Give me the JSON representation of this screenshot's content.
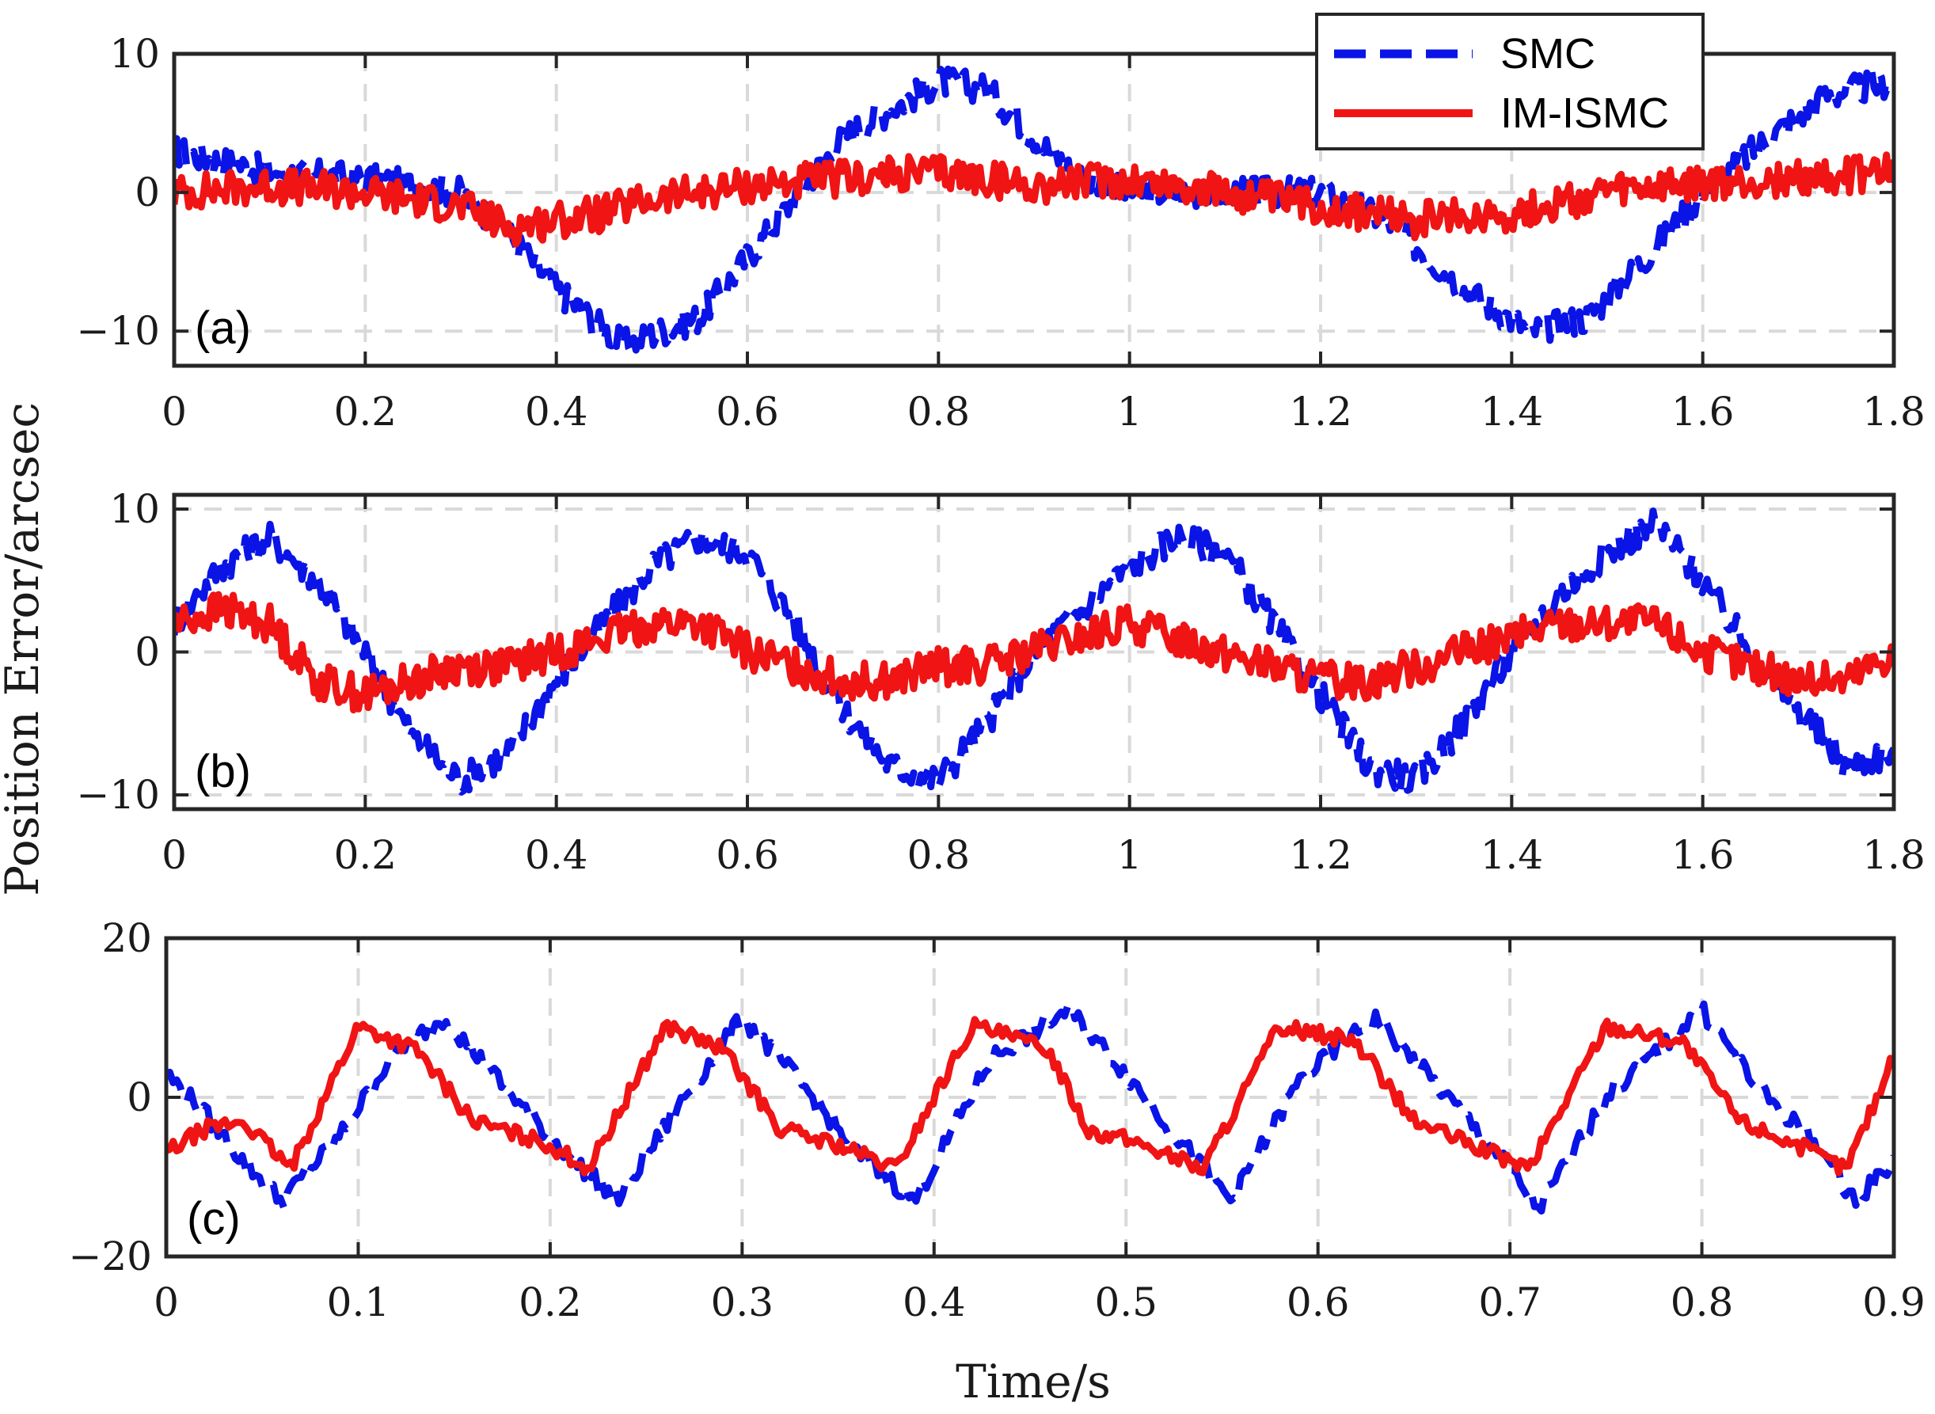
{
  "colors": {
    "smc": "#0a14e6",
    "im_ismc": "#f01414",
    "grid": "#d9d9d9",
    "axis": "#262626"
  },
  "chart_data": {
    "type": "line",
    "ylabel": "Position Error/arcsec",
    "xlabel": "Time/s",
    "legend": {
      "position": "top-right",
      "entries": [
        "SMC",
        "IM-ISMC"
      ]
    },
    "grid": true,
    "panels": [
      {
        "label": "(a)",
        "xlim": [
          0,
          1.8
        ],
        "ylim": [
          -12.5,
          10
        ],
        "xticks": [
          0,
          0.2,
          0.4,
          0.6,
          0.8,
          1,
          1.2,
          1.4,
          1.6,
          1.8
        ],
        "xtick_labels": [
          "0",
          "0.2",
          "0.4",
          "0.6",
          "0.8",
          "1",
          "1.2",
          "1.4",
          "1.6",
          "1.8"
        ],
        "yticks": [
          -10,
          0,
          10
        ],
        "ytick_labels": [
          "−10",
          "0",
          "10"
        ],
        "series": [
          {
            "name": "SMC",
            "style": "dashed",
            "x": [
              0,
              0.1,
              0.2,
              0.3,
              0.35,
              0.4,
              0.47,
              0.55,
              0.62,
              0.7,
              0.8,
              0.85,
              0.9,
              0.95,
              1.0,
              1.1,
              1.2,
              1.27,
              1.35,
              1.42,
              1.48,
              1.55,
              1.6,
              1.67,
              1.73,
              1.8
            ],
            "y": [
              3,
              1.5,
              1,
              0,
              -3,
              -7,
              -11,
              -9,
              -3,
              4,
              8,
              7.5,
              4,
              1,
              0,
              0,
              0,
              -2,
              -7,
              -10,
              -9,
              -4,
              0,
              4,
              7,
              8
            ]
          },
          {
            "name": "IM-ISMC",
            "style": "solid",
            "x": [
              0,
              0.1,
              0.2,
              0.3,
              0.35,
              0.4,
              0.45,
              0.5,
              0.6,
              0.7,
              0.8,
              0.9,
              1.0,
              1.1,
              1.2,
              1.3,
              1.4,
              1.5,
              1.6,
              1.7,
              1.8
            ],
            "y": [
              0,
              0.5,
              0,
              -1,
              -2.5,
              -2,
              -1.5,
              -0.5,
              0.5,
              1,
              1.5,
              0.5,
              1,
              0,
              -1,
              -2,
              -1.5,
              0,
              0.5,
              1,
              1.5
            ]
          }
        ]
      },
      {
        "label": "(b)",
        "xlim": [
          0,
          1.8
        ],
        "ylim": [
          -11,
          11
        ],
        "xticks": [
          0,
          0.2,
          0.4,
          0.6,
          0.8,
          1,
          1.2,
          1.4,
          1.6,
          1.8
        ],
        "xtick_labels": [
          "0",
          "0.2",
          "0.4",
          "0.6",
          "0.8",
          "1",
          "1.2",
          "1.4",
          "1.6",
          "1.8"
        ],
        "yticks": [
          -10,
          0,
          10
        ],
        "ytick_labels": [
          "−10",
          "0",
          "10"
        ],
        "series": [
          {
            "name": "SMC",
            "style": "dashed",
            "x": [
              0,
              0.05,
              0.1,
              0.15,
              0.2,
              0.25,
              0.3,
              0.35,
              0.4,
              0.45,
              0.5,
              0.55,
              0.6,
              0.65,
              0.7,
              0.75,
              0.8,
              0.85,
              0.9,
              0.95,
              1.0,
              1.05,
              1.1,
              1.15,
              1.2,
              1.25,
              1.3,
              1.35,
              1.4,
              1.45,
              1.5,
              1.55,
              1.6,
              1.65,
              1.7,
              1.75,
              1.8
            ],
            "y": [
              2,
              6,
              8,
              5,
              0,
              -6,
              -9,
              -7,
              -2,
              2,
              6,
              8,
              7,
              2,
              -4,
              -8,
              -9,
              -5,
              0,
              3,
              6,
              8,
              7,
              2,
              -3,
              -8,
              -9,
              -5,
              0,
              4,
              7,
              9,
              5,
              0,
              -4,
              -8,
              -7
            ]
          },
          {
            "name": "IM-ISMC",
            "style": "solid",
            "x": [
              0,
              0.05,
              0.1,
              0.15,
              0.2,
              0.25,
              0.3,
              0.35,
              0.4,
              0.45,
              0.5,
              0.55,
              0.6,
              0.65,
              0.7,
              0.75,
              0.8,
              0.85,
              0.9,
              0.95,
              1.0,
              1.05,
              1.1,
              1.15,
              1.2,
              1.25,
              1.3,
              1.35,
              1.4,
              1.45,
              1.5,
              1.55,
              1.6,
              1.65,
              1.7,
              1.75,
              1.8
            ],
            "y": [
              2,
              3,
              2,
              -2,
              -3,
              -2,
              -1,
              -1,
              0,
              1,
              2,
              2,
              0,
              -1,
              -2,
              -2,
              -1,
              -1,
              0,
              1,
              2,
              1,
              0,
              -1,
              -2,
              -2,
              -1,
              0,
              1,
              2,
              2,
              2,
              0,
              -1,
              -2,
              -2,
              0
            ]
          }
        ]
      },
      {
        "label": "(c)",
        "xlim": [
          0,
          0.9
        ],
        "ylim": [
          -20,
          20
        ],
        "xticks": [
          0,
          0.1,
          0.2,
          0.3,
          0.4,
          0.5,
          0.6,
          0.7,
          0.8,
          0.9
        ],
        "xtick_labels": [
          "0",
          "0.1",
          "0.2",
          "0.3",
          "0.4",
          "0.5",
          "0.6",
          "0.7",
          "0.8",
          "0.9"
        ],
        "yticks": [
          -20,
          0,
          20
        ],
        "ytick_labels": [
          "−20",
          "0",
          "20"
        ],
        "series": [
          {
            "name": "SMC",
            "style": "dashed",
            "x": [
              0,
              0.02,
              0.04,
              0.06,
              0.09,
              0.12,
              0.145,
              0.17,
              0.2,
              0.235,
              0.27,
              0.3,
              0.33,
              0.36,
              0.39,
              0.43,
              0.47,
              0.5,
              0.53,
              0.555,
              0.59,
              0.63,
              0.66,
              0.69,
              0.715,
              0.75,
              0.8,
              0.83,
              0.86,
              0.88,
              0.9
            ],
            "y": [
              3,
              -2,
              -8,
              -13,
              -5,
              6,
              10,
              3,
              -5,
              -13,
              0,
              10,
              2,
              -7,
              -13,
              5,
              11,
              3,
              -6,
              -13,
              2,
              10,
              2,
              -6,
              -14,
              0,
              11,
              1,
              -6,
              -13,
              -8
            ]
          },
          {
            "name": "IM-ISMC",
            "style": "solid",
            "x": [
              0,
              0.02,
              0.04,
              0.065,
              0.1,
              0.13,
              0.16,
              0.2,
              0.22,
              0.26,
              0.29,
              0.32,
              0.35,
              0.38,
              0.42,
              0.46,
              0.48,
              0.51,
              0.54,
              0.58,
              0.62,
              0.65,
              0.68,
              0.71,
              0.75,
              0.79,
              0.82,
              0.85,
              0.875,
              0.9
            ],
            "y": [
              -7,
              -4,
              -3,
              -9,
              9,
              6,
              -3,
              -6,
              -9,
              9,
              6,
              -4,
              -6,
              -9,
              9,
              6,
              -4,
              -6,
              -9,
              9,
              7,
              -3,
              -6,
              -9,
              9,
              7,
              -3,
              -6,
              -9,
              5
            ]
          }
        ]
      }
    ]
  }
}
